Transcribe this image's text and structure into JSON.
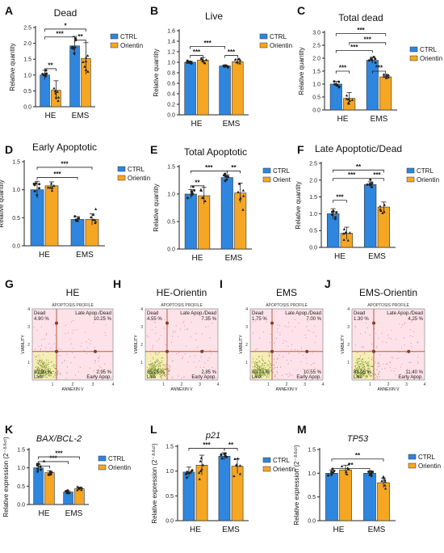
{
  "colors": {
    "ctrl": "#2e86de",
    "orientin": "#f5a623",
    "scatter_bg": "#fde2ea",
    "scatter_dots": "#e0506f",
    "gate_line": "#b85a3c",
    "gate_point": "#8a3a23",
    "live_zone": "#f4f1a8"
  },
  "chart_data": [
    {
      "panel_letter": "A",
      "type": "bar",
      "title": "Dead",
      "ylabel": "Relative quantity",
      "categories": [
        "HE",
        "EMS"
      ],
      "ylim": [
        0,
        2.5
      ],
      "yticks": [
        "0.0",
        "0.5",
        "1.0",
        "1.5",
        "2.0",
        "2.5"
      ],
      "series": [
        {
          "name": "CTRL",
          "values": [
            1.0,
            1.92
          ],
          "errors": [
            0.15,
            0.3
          ]
        },
        {
          "name": "Orientin",
          "values": [
            0.52,
            1.52
          ],
          "errors": [
            0.3,
            0.5
          ]
        }
      ],
      "legend": "top-right",
      "significance": [
        {
          "label": "**",
          "from": 0,
          "to": 1,
          "y": 1.2
        },
        {
          "label": "***",
          "from": 0,
          "to": 2,
          "y": 2.2
        },
        {
          "label": "*",
          "from": 0,
          "to": 3,
          "y": 2.45
        },
        {
          "label": "**",
          "from": 2,
          "to": 3,
          "y": 2.1
        }
      ]
    },
    {
      "panel_letter": "B",
      "type": "bar",
      "title": "Live",
      "ylabel": "Relative quantity",
      "categories": [
        "HE",
        "EMS"
      ],
      "ylim": [
        0,
        1.6
      ],
      "yticks": [
        "0.0",
        "0.2",
        "0.4",
        "0.6",
        "0.8",
        "1.0",
        "1.2",
        "1.4",
        "1.6"
      ],
      "series": [
        {
          "name": "CTRL",
          "values": [
            1.0,
            0.93
          ],
          "errors": [
            0.02,
            0.02
          ]
        },
        {
          "name": "Orientin",
          "values": [
            1.04,
            1.01
          ],
          "errors": [
            0.05,
            0.05
          ]
        }
      ],
      "legend": "top-right",
      "significance": [
        {
          "label": "***",
          "from": 0,
          "to": 1,
          "y": 1.13
        },
        {
          "label": "***",
          "from": 0,
          "to": 2,
          "y": 1.3
        },
        {
          "label": "***",
          "from": 2,
          "to": 3,
          "y": 1.13
        }
      ]
    },
    {
      "panel_letter": "C",
      "type": "bar",
      "title": "Total dead",
      "ylabel": "Relative quantity",
      "categories": [
        "HE",
        "EMS"
      ],
      "ylim": [
        0,
        3.0
      ],
      "yticks": [
        "0.0",
        "0.5",
        "1.0",
        "1.5",
        "2.0",
        "2.5",
        "3.0"
      ],
      "series": [
        {
          "name": "CTRL",
          "values": [
            1.0,
            1.92
          ],
          "errors": [
            0.1,
            0.12
          ]
        },
        {
          "name": "Orientin",
          "values": [
            0.45,
            1.28
          ],
          "errors": [
            0.22,
            0.1
          ]
        }
      ],
      "legend": "top-right",
      "significance": [
        {
          "label": "***",
          "from": 0,
          "to": 1,
          "y": 1.5
        },
        {
          "label": "***",
          "from": 0,
          "to": 2,
          "y": 2.3
        },
        {
          "label": "***",
          "from": 1,
          "to": 3,
          "y": 2.6
        },
        {
          "label": "***",
          "from": 0,
          "to": 3,
          "y": 2.95
        },
        {
          "label": "***",
          "from": 2,
          "to": 3,
          "y": 1.5
        }
      ]
    },
    {
      "panel_letter": "D",
      "type": "bar",
      "title": "Early Apoptotic",
      "ylabel": "Relative quantity",
      "categories": [
        "HE",
        "EMS"
      ],
      "ylim": [
        0,
        1.5
      ],
      "yticks": [
        "0.0",
        "0.5",
        "1.0",
        "1.5"
      ],
      "series": [
        {
          "name": "CTRL",
          "values": [
            1.0,
            0.47
          ],
          "errors": [
            0.15,
            0.05
          ]
        },
        {
          "name": "Orientin",
          "values": [
            1.07,
            0.47
          ],
          "errors": [
            0.07,
            0.1
          ]
        }
      ],
      "legend": "top-right",
      "significance": [
        {
          "label": "***",
          "from": 0,
          "to": 2,
          "y": 1.22
        },
        {
          "label": "***",
          "from": 0,
          "to": 3,
          "y": 1.4
        }
      ]
    },
    {
      "panel_letter": "E",
      "type": "bar",
      "title": "Total Apoptotic",
      "ylabel": "Relative quantity",
      "categories": [
        "HE",
        "EMS"
      ],
      "ylim": [
        0,
        1.5
      ],
      "yticks": [
        "0.0",
        "0.5",
        "1.0",
        "1.5"
      ],
      "series": [
        {
          "name": "CTRL",
          "values": [
            1.0,
            1.3
          ],
          "errors": [
            0.08,
            0.05
          ]
        },
        {
          "name": "Orient",
          "values": [
            0.97,
            1.02
          ],
          "errors": [
            0.15,
            0.18
          ]
        }
      ],
      "legend": "top-right",
      "significance": [
        {
          "label": "**",
          "from": 0,
          "to": 1,
          "y": 1.15
        },
        {
          "label": "***",
          "from": 0,
          "to": 2,
          "y": 1.42
        },
        {
          "label": "**",
          "from": 2,
          "to": 3,
          "y": 1.42
        }
      ]
    },
    {
      "panel_letter": "F",
      "type": "bar",
      "title": "Late Apoptotic/Dead",
      "ylabel": "Relative quantity",
      "categories": [
        "HE",
        "EMS"
      ],
      "ylim": [
        0,
        2.5
      ],
      "yticks": [
        "0.0",
        "0.5",
        "1.0",
        "1.5",
        "2.0",
        "2.5"
      ],
      "series": [
        {
          "name": "CTRL",
          "values": [
            1.0,
            1.87
          ],
          "errors": [
            0.15,
            0.08
          ]
        },
        {
          "name": "Orientin",
          "values": [
            0.42,
            1.2
          ],
          "errors": [
            0.18,
            0.15
          ]
        }
      ],
      "legend": "top-right",
      "significance": [
        {
          "label": "***",
          "from": 0,
          "to": 1,
          "y": 1.4
        },
        {
          "label": "***",
          "from": 0,
          "to": 2,
          "y": 2.05
        },
        {
          "label": "**",
          "from": 0,
          "to": 3,
          "y": 2.3
        },
        {
          "label": "***",
          "from": 2,
          "to": 3,
          "y": 2.05
        }
      ]
    },
    {
      "panel_letter": "G",
      "type": "scatter",
      "title": "HE",
      "profile_label": "APOPTOSIS PROFILE",
      "xlabel": "ANNEXIN V",
      "ylabel": "VIABILITY",
      "xticks": [
        "1",
        "2",
        "3",
        "4"
      ],
      "yticks": [
        "1",
        "2",
        "3",
        "4"
      ],
      "quadrants": {
        "dead_label": "Dead",
        "dead": "4.90 %",
        "late_label": "Late Apop./Dead",
        "late": "10.25 %",
        "live_label": "Live",
        "live": "81.90 %",
        "early_label": "Early Apop.",
        "early": "2.95 %"
      }
    },
    {
      "panel_letter": "H",
      "type": "scatter",
      "title": "HE-Orientin",
      "profile_label": "APOPTOSIS PROFILE",
      "xlabel": "ANNEXIN V",
      "ylabel": "VIABILITY",
      "xticks": [
        "1",
        "2",
        "3",
        "4"
      ],
      "yticks": [
        "1",
        "2",
        "3",
        "4"
      ],
      "quadrants": {
        "dead_label": "Dead",
        "dead": "4.55 %",
        "late_label": "Late Apop./Dead",
        "late": "7.35 %",
        "live_label": "Live",
        "live": "85.25 %",
        "early_label": "Early Apop.",
        "early": "2.85 %"
      }
    },
    {
      "panel_letter": "I",
      "type": "scatter",
      "title": "EMS",
      "profile_label": "APOPTOSIS PROFILE",
      "xlabel": "ANNEXIN V",
      "ylabel": "VIABILITY",
      "xticks": [
        "1",
        "2",
        "3",
        "4"
      ],
      "yticks": [
        "1",
        "2",
        "3",
        "4"
      ],
      "quadrants": {
        "dead_label": "Dead",
        "dead": "1.75 %",
        "late_label": "Late Apop./Dead",
        "late": "7.00 %",
        "live_label": "Live",
        "live": "80.70 %",
        "early_label": "Early Apop.",
        "early": "10.55 %"
      }
    },
    {
      "panel_letter": "J",
      "type": "scatter",
      "title": "EMS-Orientin",
      "profile_label": "APOPTOSIS PROFILE",
      "xlabel": "ANNEXIN V",
      "ylabel": "VIABILITY",
      "xticks": [
        "1",
        "2",
        "3",
        "4"
      ],
      "yticks": [
        "1",
        "2",
        "3",
        "4"
      ],
      "quadrants": {
        "dead_label": "Dead",
        "dead": "1.30 %",
        "late_label": "Late Apop./Dead",
        "late": "4.25 %",
        "live_label": "Live",
        "live": "83.05 %",
        "early_label": "Early Apop.",
        "early": "11.40 %"
      }
    },
    {
      "panel_letter": "K",
      "type": "bar",
      "title": "BAX/BCL-2",
      "title_italic": true,
      "ylabel": "Relative expression (2⁻ᐞᐞᶜᵗ)",
      "categories": [
        "HE",
        "EMS"
      ],
      "ylim": [
        0,
        1.5
      ],
      "yticks": [
        "0.0",
        "0.5",
        "1.0",
        "1.5"
      ],
      "series": [
        {
          "name": "CTRL",
          "values": [
            1.0,
            0.34
          ],
          "errors": [
            0.1,
            0.03
          ]
        },
        {
          "name": "Orientin",
          "values": [
            0.87,
            0.43
          ],
          "errors": [
            0.05,
            0.04
          ]
        }
      ],
      "legend": "top-right",
      "significance": [
        {
          "label": "*",
          "from": 0,
          "to": 1,
          "y": 1.05
        },
        {
          "label": "***",
          "from": 0,
          "to": 2,
          "y": 1.17
        },
        {
          "label": "***",
          "from": 0,
          "to": 3,
          "y": 1.3
        }
      ]
    },
    {
      "panel_letter": "L",
      "type": "bar",
      "title": "p21",
      "title_italic": true,
      "ylabel": "Relative expression (2⁻ᐞᐞᶜᵗ)",
      "categories": [
        "HE",
        "EMS"
      ],
      "ylim": [
        0,
        1.5
      ],
      "yticks": [
        "0.0",
        "0.5",
        "1.0",
        "1.5"
      ],
      "series": [
        {
          "name": "CTRL",
          "values": [
            0.98,
            1.3
          ],
          "errors": [
            0.1,
            0.07
          ]
        },
        {
          "name": "Orientin",
          "values": [
            1.12,
            1.1
          ],
          "errors": [
            0.2,
            0.15
          ]
        }
      ],
      "legend": "top-right",
      "significance": [
        {
          "label": "***",
          "from": 0,
          "to": 2,
          "y": 1.46
        },
        {
          "label": "**",
          "from": 2,
          "to": 3,
          "y": 1.46
        }
      ]
    },
    {
      "panel_letter": "M",
      "type": "bar",
      "title": "TP53",
      "title_italic": true,
      "ylabel": "Relative expression (2⁻ᐞᐞᶜᵗ)",
      "categories": [
        "HE",
        "EMS"
      ],
      "ylim": [
        0,
        1.5
      ],
      "yticks": [
        "0.0",
        "0.5",
        "1.0",
        "1.5"
      ],
      "series": [
        {
          "name": "CTRL",
          "values": [
            1.0,
            1.0
          ],
          "errors": [
            0.07,
            0.03
          ]
        },
        {
          "name": "Orientin",
          "values": [
            1.07,
            0.8
          ],
          "errors": [
            0.1,
            0.1
          ]
        }
      ],
      "legend": "top-right",
      "significance": [
        {
          "label": "**",
          "from": 0,
          "to": 2,
          "y": 1.1
        },
        {
          "label": "**",
          "from": 0,
          "to": 3,
          "y": 1.3
        }
      ]
    }
  ]
}
